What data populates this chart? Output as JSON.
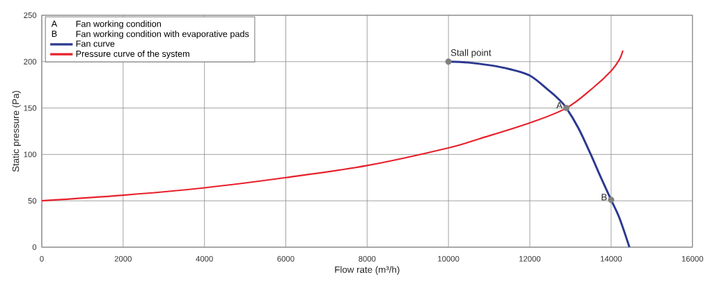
{
  "chart_data": {
    "type": "line",
    "xlabel": "Flow rate (m³/h)",
    "ylabel": "Static pressure (Pa)",
    "xlim": [
      0,
      16000
    ],
    "ylim": [
      0,
      250
    ],
    "xticks": [
      0,
      2000,
      4000,
      6000,
      8000,
      10000,
      12000,
      14000,
      16000
    ],
    "yticks": [
      0,
      50,
      100,
      150,
      200,
      250
    ],
    "grid": true,
    "legend": "top left",
    "series": [
      {
        "name": "Fan curve",
        "color": "#2b3990",
        "x": [
          10000,
          10500,
          11040,
          11500,
          12000,
          12440,
          12700,
          12900,
          13200,
          13500,
          13730,
          14000,
          14200,
          14450
        ],
        "values": [
          200,
          199,
          196,
          192,
          185,
          170,
          160,
          150,
          128,
          100,
          77,
          51,
          32,
          0
        ]
      },
      {
        "name": "Pressure curve of the system",
        "color": "#e8202a",
        "x": [
          0,
          2000,
          4000,
          6000,
          8000,
          10000,
          10770,
          12000,
          12900,
          13560,
          14000,
          14200,
          14290
        ],
        "values": [
          50,
          56,
          64,
          75,
          88,
          107,
          117,
          134,
          150,
          172,
          190,
          202,
          212
        ]
      },
      {
        "type": "scatter",
        "marker": "circle",
        "color": "#808080",
        "x": [
          10000,
          12900,
          14000
        ],
        "values": [
          200,
          150,
          51
        ]
      }
    ],
    "annotations": [
      "A",
      "Fan working condition",
      "B",
      "Fan working condition with evaporative pads",
      {
        "text": "Stall point",
        "x": 10000,
        "y": 200
      },
      {
        "text": "A",
        "x": 12900,
        "y": 150
      },
      {
        "text": "B",
        "x": 14000,
        "y": 51
      }
    ]
  }
}
